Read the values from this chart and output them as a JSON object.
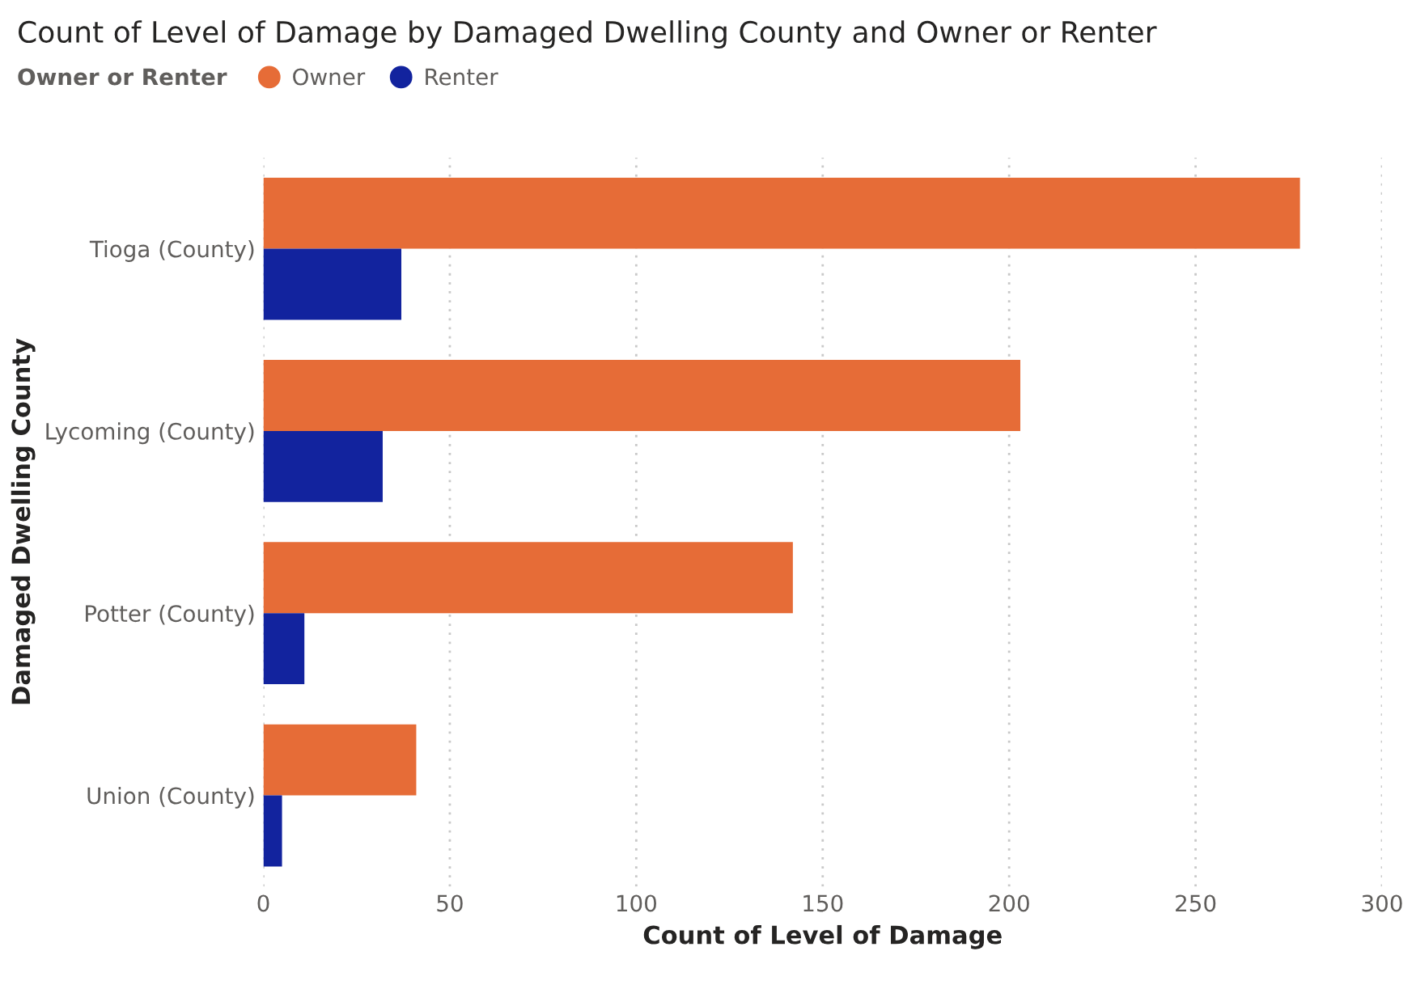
{
  "chart_data": {
    "type": "bar",
    "orientation": "horizontal",
    "title": "Count of Level of Damage by Damaged Dwelling County and Owner or Renter",
    "xlabel": "Count of Level of Damage",
    "ylabel": "Damaged Dwelling County",
    "legend_title": "Owner or Renter",
    "legend": "top left",
    "categories": [
      "Tioga (County)",
      "Lycoming (County)",
      "Potter (County)",
      "Union (County)"
    ],
    "series": [
      {
        "name": "Owner",
        "color": "#e66c37",
        "values": [
          278,
          203,
          142,
          41
        ]
      },
      {
        "name": "Renter",
        "color": "#12239e",
        "values": [
          37,
          32,
          11,
          5
        ]
      }
    ],
    "xlim": [
      0,
      300
    ],
    "xticks": [
      0,
      50,
      100,
      150,
      200,
      250,
      300
    ],
    "grid": "x"
  }
}
